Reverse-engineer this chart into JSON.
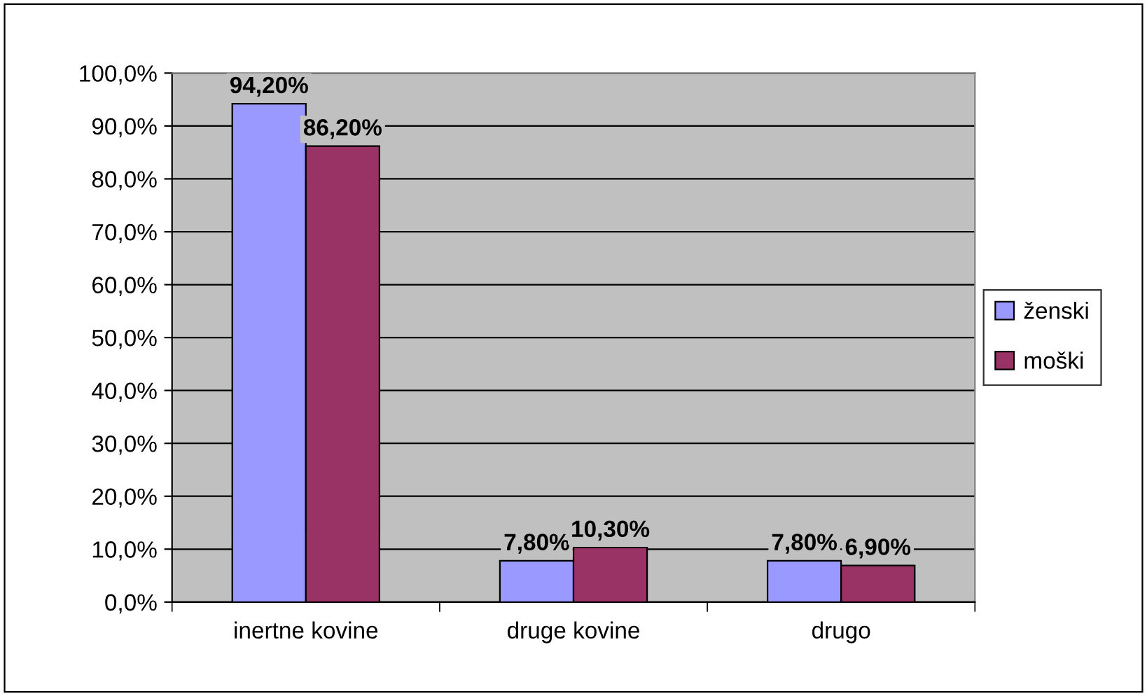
{
  "chart_data": {
    "type": "bar",
    "categories": [
      "inertne kovine",
      "druge kovine",
      "drugo"
    ],
    "series": [
      {
        "name": "ženski",
        "color": "#9999ff",
        "values": [
          94.2,
          7.8,
          7.8
        ],
        "value_labels": [
          "94,20%",
          "7,80%",
          "7,80%"
        ]
      },
      {
        "name": "moški",
        "color": "#993366",
        "values": [
          86.2,
          10.3,
          6.9
        ],
        "value_labels": [
          "86,20%",
          "10,30%",
          "6,90%"
        ]
      }
    ],
    "ylim": [
      0,
      100
    ],
    "yticks": [
      {
        "value": 0,
        "label": "0,0%"
      },
      {
        "value": 10,
        "label": "10,0%"
      },
      {
        "value": 20,
        "label": "20,0%"
      },
      {
        "value": 30,
        "label": "30,0%"
      },
      {
        "value": 40,
        "label": "40,0%"
      },
      {
        "value": 50,
        "label": "50,0%"
      },
      {
        "value": 60,
        "label": "60,0%"
      },
      {
        "value": 70,
        "label": "70,0%"
      },
      {
        "value": 80,
        "label": "80,0%"
      },
      {
        "value": 90,
        "label": "90,0%"
      },
      {
        "value": 100,
        "label": "100,0%"
      }
    ],
    "grid": "y",
    "legend": "right"
  }
}
